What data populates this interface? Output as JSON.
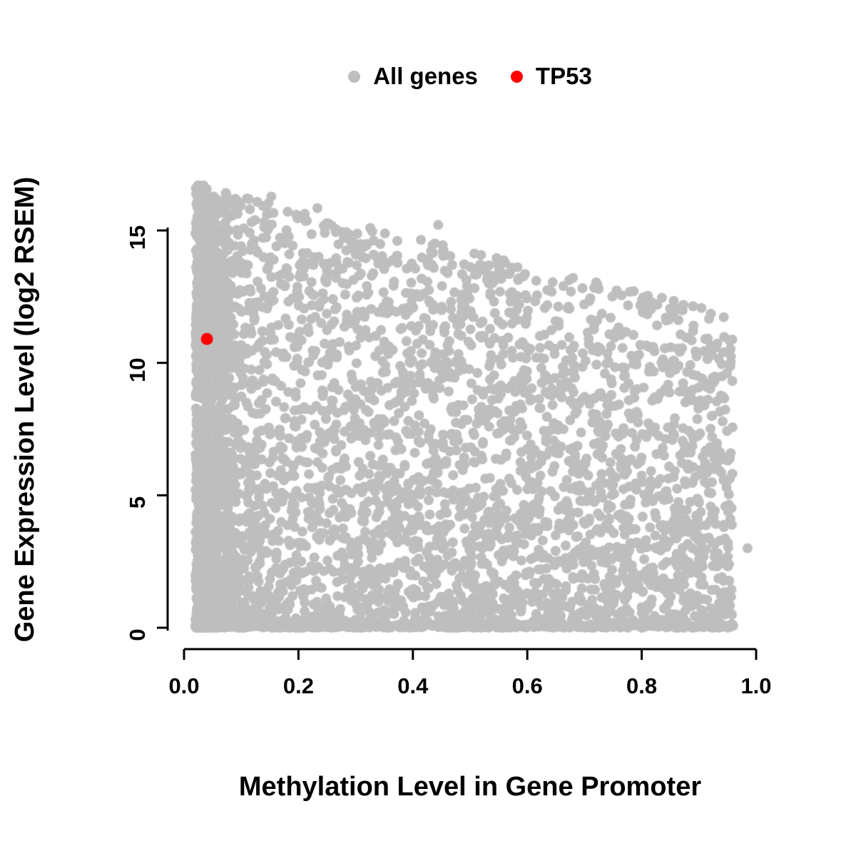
{
  "legend": {
    "items": [
      {
        "label": "All genes",
        "color": "#bebebe"
      },
      {
        "label": "TP53",
        "color": "#ff0000"
      }
    ]
  },
  "x_axis": {
    "label": "Methylation Level in Gene Promoter",
    "tick_labels": [
      "0.0",
      "0.2",
      "0.4",
      "0.6",
      "0.8",
      "1.0"
    ],
    "tick_values": [
      0,
      0.2,
      0.4,
      0.6,
      0.8,
      1.0
    ]
  },
  "y_axis": {
    "label": "Gene Expression Level (log2 RSEM)",
    "tick_labels": [
      "0",
      "5",
      "10",
      "15"
    ],
    "tick_values": [
      0,
      5,
      10,
      15
    ]
  },
  "chart_data": {
    "type": "scatter",
    "title": "",
    "xlabel": "Methylation Level in Gene Promoter",
    "ylabel": "Gene Expression Level (log2 RSEM)",
    "xlim": [
      0,
      1.0
    ],
    "ylim": [
      0,
      17
    ],
    "x_ticks": [
      0,
      0.2,
      0.4,
      0.6,
      0.8,
      1.0
    ],
    "y_ticks": [
      0,
      5,
      10,
      15
    ],
    "grid": false,
    "legend_position": "top-center",
    "series": [
      {
        "name": "All genes",
        "color": "#bebebe",
        "marker": "filled-circle",
        "kind": "synthetic_cloud",
        "n_points": 5200,
        "seed": 42,
        "x_range": [
          0.02,
          0.96
        ],
        "y_range": [
          0,
          16.7
        ],
        "upper_envelope": {
          "intercept": 16.8,
          "slope": -5.2
        },
        "extra_points": [
          [
            0.985,
            3.0
          ]
        ],
        "description": "Dense cloud of thousands of genes. Expression values fill from 0 up to an upper envelope that declines from ~16.5 log2 RSEM at methylation ~0 to ~11.5 at methylation ~0.95. Extra point density at methylation < 0.1 and along the y = 0 baseline."
      },
      {
        "name": "TP53",
        "color": "#ff0000",
        "marker": "filled-circle",
        "points": [
          [
            0.04,
            10.9
          ]
        ]
      }
    ]
  }
}
